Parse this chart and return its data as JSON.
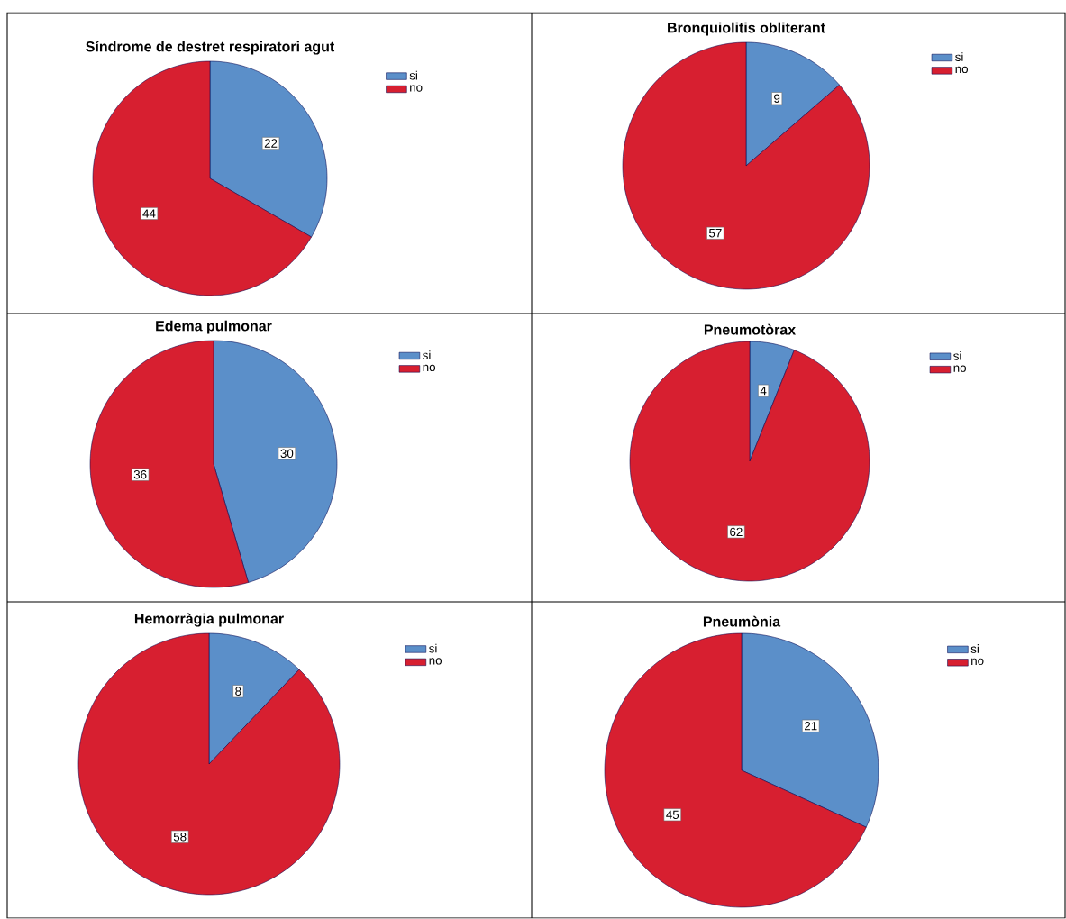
{
  "chart_data": [
    {
      "type": "pie",
      "title": "Síndrome de destret respiratori agut",
      "categories": [
        "si",
        "no"
      ],
      "values": [
        22,
        44
      ],
      "colors": [
        "#5b8fc9",
        "#d71f30"
      ],
      "data_labels": true,
      "legend": "top right"
    },
    {
      "type": "pie",
      "title": "Bronquiolitis obliterant",
      "categories": [
        "si",
        "no"
      ],
      "values": [
        9,
        57
      ],
      "colors": [
        "#5b8fc9",
        "#d71f30"
      ],
      "data_labels": true,
      "legend": "top right"
    },
    {
      "type": "pie",
      "title": "Edema pulmonar",
      "categories": [
        "si",
        "no"
      ],
      "values": [
        30,
        36
      ],
      "colors": [
        "#5b8fc9",
        "#d71f30"
      ],
      "data_labels": true,
      "legend": "top right"
    },
    {
      "type": "pie",
      "title": "Pneumotòrax",
      "categories": [
        "si",
        "no"
      ],
      "values": [
        4,
        62
      ],
      "colors": [
        "#5b8fc9",
        "#d71f30"
      ],
      "data_labels": true,
      "legend": "top right"
    },
    {
      "type": "pie",
      "title": "Hemorràgia pulmonar",
      "categories": [
        "si",
        "no"
      ],
      "values": [
        8,
        58
      ],
      "colors": [
        "#5b8fc9",
        "#d71f30"
      ],
      "data_labels": true,
      "legend": "top right"
    },
    {
      "type": "pie",
      "title": "Pneumònia",
      "categories": [
        "si",
        "no"
      ],
      "values": [
        21,
        45
      ],
      "colors": [
        "#5b8fc9",
        "#d71f30"
      ],
      "data_labels": true,
      "legend": "top right"
    }
  ]
}
